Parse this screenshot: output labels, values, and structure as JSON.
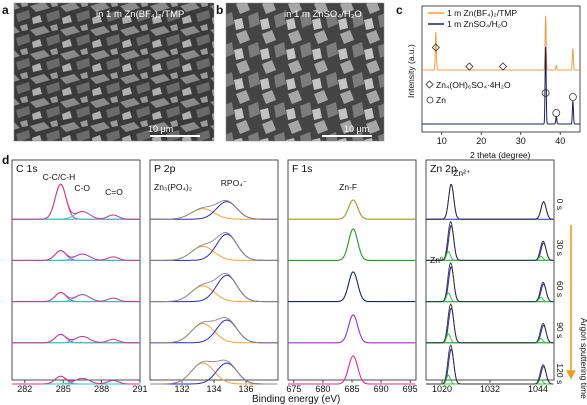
{
  "panels": {
    "a": {
      "label": "a",
      "caption": "in 1 m Zn(BF₄)₂/TMP",
      "scale": "10 μm"
    },
    "b": {
      "label": "b",
      "caption": "in 1 m ZnSO₄/H₂O",
      "scale": "10 μm"
    },
    "c": {
      "label": "c"
    },
    "d": {
      "label": "d"
    }
  },
  "colors": {
    "orange": "#f0a040",
    "navy": "#1c2260",
    "blue": "#2a2ab8",
    "teal": "#2ec2c2",
    "pink": "#d8338a",
    "olive": "#9a9a2a",
    "green": "#1f9a1f",
    "purple": "#9b30c8",
    "magenta": "#e0308a",
    "lightgreen": "#38c238",
    "arrow": "#f09a20"
  },
  "chart_data": [
    {
      "type": "line",
      "id": "xrd",
      "xlabel": "2 theta (degree)",
      "ylabel": "Intensity (a.u.)",
      "xlim": [
        5,
        45
      ],
      "xticks": [
        10,
        20,
        30,
        40
      ],
      "series": [
        {
          "name": "1 m Zn(BF₄)₂/TMP",
          "peaks": [
            {
              "x": 8.5,
              "h": 0.7
            },
            {
              "x": 36.3,
              "h": 1.0
            },
            {
              "x": 39.0,
              "h": 0.08
            },
            {
              "x": 43.2,
              "h": 0.4
            }
          ]
        },
        {
          "name": "1 m ZnSO₄/H₂O",
          "peaks": [
            {
              "x": 36.3,
              "h": 1.0
            },
            {
              "x": 39.0,
              "h": 0.1
            },
            {
              "x": 43.2,
              "h": 0.3
            }
          ]
        }
      ],
      "annotations": [
        {
          "marker": "diamond",
          "label": "Zn₄(OH)₆SO₄·4H₂O"
        },
        {
          "marker": "circle",
          "label": "Zn"
        }
      ]
    },
    {
      "type": "line",
      "id": "c1s",
      "title": "C 1s",
      "xlim": [
        281,
        291
      ],
      "xticks": [
        282,
        285,
        288,
        291
      ],
      "peak_labels": [
        "C-C/C-H",
        "C-O",
        "C=O"
      ],
      "components": [
        {
          "center": 284.8
        },
        {
          "center": 286.5
        },
        {
          "center": 288.9
        }
      ],
      "layers": [
        {
          "amps": [
            1.0,
            0.22,
            0.12
          ]
        },
        {
          "amps": [
            0.28,
            0.18,
            0.1
          ]
        },
        {
          "amps": [
            0.26,
            0.2,
            0.1
          ]
        },
        {
          "amps": [
            0.24,
            0.18,
            0.1
          ]
        },
        {
          "amps": [
            0.22,
            0.16,
            0.1
          ]
        }
      ]
    },
    {
      "type": "line",
      "id": "p2p",
      "title": "P 2p",
      "xlim": [
        130,
        138
      ],
      "xticks": [
        132,
        134,
        136
      ],
      "peak_labels": [
        "Zn₃(PO₄)₂",
        "RPO₄⁻"
      ],
      "components": [
        {
          "center": 133.3
        },
        {
          "center": 134.8
        }
      ],
      "layers": [
        {
          "amps": [
            0.3,
            0.5
          ]
        },
        {
          "amps": [
            0.4,
            0.75
          ]
        },
        {
          "amps": [
            0.45,
            0.75
          ]
        },
        {
          "amps": [
            0.55,
            0.65
          ]
        },
        {
          "amps": [
            0.6,
            0.6
          ]
        }
      ]
    },
    {
      "type": "line",
      "id": "f1s",
      "title": "F 1s",
      "xlim": [
        674,
        696
      ],
      "xticks": [
        675,
        680,
        685,
        690,
        695
      ],
      "peak_labels": [
        "Zn-F"
      ],
      "components": [
        {
          "center": 685.2
        }
      ],
      "layers": [
        {
          "amps": [
            0.55
          ]
        },
        {
          "amps": [
            0.9
          ]
        },
        {
          "amps": [
            0.85
          ]
        },
        {
          "amps": [
            0.8
          ]
        },
        {
          "amps": [
            0.8
          ]
        }
      ]
    },
    {
      "type": "line",
      "id": "zn2p",
      "title": "Zn 2p",
      "xlim": [
        1016,
        1048
      ],
      "xticks": [
        1020,
        1032,
        1044
      ],
      "peak_labels": [
        "Zn²⁺",
        "Zn⁰"
      ],
      "components": [
        {
          "center": 1022.3
        },
        {
          "center": 1021.6
        },
        {
          "center": 1045.4
        },
        {
          "center": 1044.7
        }
      ],
      "layers": [
        {
          "amps": [
            1.0,
            0.0,
            0.5,
            0.0
          ]
        },
        {
          "amps": [
            1.0,
            0.25,
            0.5,
            0.12
          ]
        },
        {
          "amps": [
            1.0,
            0.25,
            0.5,
            0.12
          ]
        },
        {
          "amps": [
            1.0,
            0.25,
            0.5,
            0.12
          ]
        },
        {
          "amps": [
            1.0,
            0.25,
            0.5,
            0.12
          ]
        }
      ],
      "times": [
        "0 s",
        "30 s",
        "60 s",
        "90 s",
        "120 s"
      ],
      "time_axis_label": "Argon sputtering time"
    }
  ],
  "xps_xlabel": "Binding energy (eV)"
}
